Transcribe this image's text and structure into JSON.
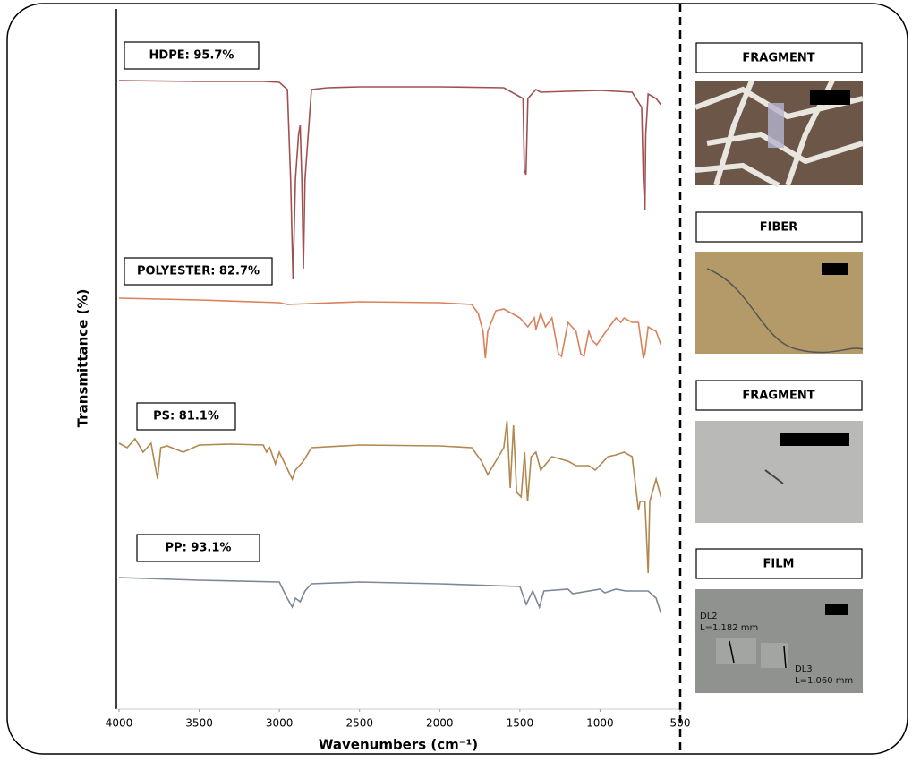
{
  "chart_data": {
    "type": "line",
    "xlabel": "Wavenumbers (cm⁻¹)",
    "ylabel": "Transmittance (%)",
    "xlim": [
      4000,
      500
    ],
    "xticks": [
      4000,
      3500,
      3000,
      2500,
      2000,
      1500,
      1000,
      500
    ],
    "ylim": [
      0,
      78.2
    ],
    "series": [
      {
        "name": "HDPE: 95.7%",
        "color": "#a05050",
        "x": [
          4000,
          3500,
          3100,
          3000,
          2950,
          2930,
          2915,
          2900,
          2880,
          2870,
          2860,
          2850,
          2840,
          2800,
          2700,
          2500,
          2000,
          1600,
          1480,
          1472,
          1462,
          1450,
          1400,
          1370,
          1200,
          1000,
          800,
          740,
          730,
          720,
          715,
          700,
          650,
          620
        ],
        "values": [
          70.2,
          70.1,
          70.1,
          70.0,
          69.2,
          59.2,
          48.0,
          59.2,
          64.2,
          65.2,
          59.2,
          49.2,
          59.2,
          69.2,
          69.4,
          69.5,
          69.5,
          69.4,
          68.2,
          60.2,
          59.7,
          68.2,
          69.2,
          68.9,
          69.0,
          69.1,
          68.9,
          67.2,
          59.2,
          55.7,
          64.2,
          68.7,
          68.2,
          67.5
        ]
      },
      {
        "name": "POLYESTER: 82.7%",
        "color": "#d9825a",
        "x": [
          4000,
          3500,
          3000,
          2950,
          2500,
          2000,
          1800,
          1760,
          1730,
          1715,
          1700,
          1650,
          1600,
          1550,
          1500,
          1450,
          1410,
          1400,
          1370,
          1340,
          1300,
          1260,
          1240,
          1200,
          1150,
          1120,
          1100,
          1070,
          1050,
          1020,
          970,
          900,
          870,
          850,
          800,
          760,
          730,
          720,
          700,
          650,
          620
        ],
        "values": [
          45.9,
          45.7,
          45.4,
          45.2,
          45.5,
          45.4,
          45.2,
          44.2,
          42.2,
          39.2,
          42.2,
          44.5,
          44.7,
          44.2,
          43.7,
          42.7,
          43.7,
          42.4,
          44.2,
          42.7,
          43.7,
          39.7,
          39.4,
          43.2,
          42.2,
          39.7,
          39.4,
          42.2,
          41.2,
          40.7,
          42.0,
          43.7,
          43.2,
          43.7,
          43.2,
          43.2,
          39.2,
          39.7,
          42.7,
          42.2,
          40.7
        ]
      },
      {
        "name": "PS: 81.1%",
        "color": "#b08850",
        "x": [
          4000,
          3950,
          3900,
          3850,
          3800,
          3760,
          3740,
          3700,
          3600,
          3500,
          3300,
          3100,
          3080,
          3060,
          3025,
          3000,
          2920,
          2900,
          2850,
          2800,
          2500,
          2000,
          1800,
          1740,
          1700,
          1600,
          1580,
          1560,
          1540,
          1520,
          1492,
          1470,
          1452,
          1430,
          1400,
          1370,
          1300,
          1200,
          1150,
          1070,
          1030,
          950,
          900,
          850,
          800,
          760,
          750,
          720,
          700,
          690,
          650,
          620
        ],
        "values": [
          29.7,
          29.2,
          30.2,
          28.7,
          29.7,
          25.7,
          29.2,
          29.4,
          28.7,
          29.5,
          29.6,
          29.5,
          28.7,
          29.2,
          27.4,
          28.7,
          25.7,
          26.7,
          27.7,
          29.2,
          29.5,
          29.4,
          29.2,
          27.7,
          26.2,
          29.2,
          32.2,
          24.7,
          31.7,
          24.2,
          23.7,
          28.7,
          23.2,
          28.2,
          28.7,
          26.7,
          28.2,
          27.7,
          27.2,
          27.2,
          26.7,
          28.2,
          28.4,
          28.7,
          28.2,
          22.2,
          23.2,
          23.2,
          15.2,
          23.2,
          25.7,
          23.7
        ]
      },
      {
        "name": "PP: 93.1%",
        "color": "#7d8896",
        "x": [
          4000,
          3500,
          3000,
          2960,
          2920,
          2900,
          2870,
          2840,
          2800,
          2500,
          2000,
          1500,
          1460,
          1420,
          1378,
          1350,
          1200,
          1170,
          1000,
          970,
          900,
          840,
          800,
          700,
          650,
          620
        ],
        "values": [
          14.7,
          14.4,
          14.2,
          12.7,
          11.4,
          12.4,
          12.0,
          13.2,
          14.0,
          14.2,
          14.0,
          13.7,
          11.7,
          13.2,
          11.4,
          13.2,
          13.4,
          12.9,
          13.4,
          13.0,
          13.4,
          13.2,
          13.2,
          13.2,
          12.4,
          10.7
        ]
      }
    ]
  },
  "micrographs": [
    {
      "label": "FRAGMENT"
    },
    {
      "label": "FIBER"
    },
    {
      "label": "FRAGMENT"
    },
    {
      "label": "FILM",
      "annotations": [
        "DL2",
        "L=1.182 mm",
        "DL3",
        "L=1.060 mm"
      ]
    }
  ]
}
